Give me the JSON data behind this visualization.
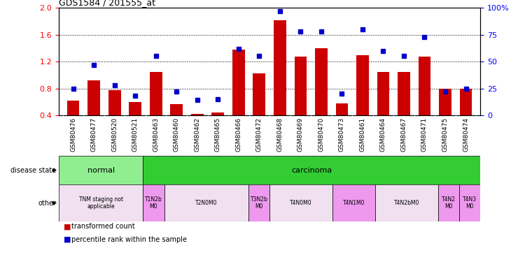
{
  "title": "GDS1584 / 201555_at",
  "samples": [
    "GSM80476",
    "GSM80477",
    "GSM80520",
    "GSM80521",
    "GSM80463",
    "GSM80460",
    "GSM80462",
    "GSM80465",
    "GSM80466",
    "GSM80472",
    "GSM80468",
    "GSM80469",
    "GSM80470",
    "GSM80473",
    "GSM80461",
    "GSM80464",
    "GSM80467",
    "GSM80471",
    "GSM80475",
    "GSM80474"
  ],
  "transformed_count": [
    0.62,
    0.92,
    0.77,
    0.6,
    1.05,
    0.57,
    0.42,
    0.44,
    1.38,
    1.02,
    1.82,
    1.27,
    1.4,
    0.58,
    1.3,
    1.05,
    1.05,
    1.27,
    0.8,
    0.8
  ],
  "percentile_rank": [
    25,
    47,
    28,
    18,
    55,
    22,
    14,
    15,
    62,
    55,
    97,
    78,
    78,
    20,
    80,
    60,
    55,
    73,
    22,
    25
  ],
  "ylim_left": [
    0.4,
    2.0
  ],
  "ylim_right": [
    0,
    100
  ],
  "yticks_left": [
    0.4,
    0.8,
    1.2,
    1.6,
    2.0
  ],
  "yticks_right": [
    0,
    25,
    50,
    75,
    100
  ],
  "ytick_right_labels": [
    "0",
    "25",
    "50",
    "75",
    "100%"
  ],
  "bar_color": "#cc0000",
  "dot_color": "#0000cc",
  "xticklabel_bg": "#c8c8c8",
  "disease_state_normal_color": "#90ee90",
  "disease_state_carcinoma_color": "#33cc33",
  "other_white_color": "#f0e0f0",
  "other_pink_color": "#ee99ee",
  "other_groups": [
    {
      "label": "TNM staging not\napplicable",
      "start": 0,
      "end": 4,
      "color": "#f0e0f0"
    },
    {
      "label": "T1N2b\nM0",
      "start": 4,
      "end": 5,
      "color": "#ee99ee"
    },
    {
      "label": "T2N0M0",
      "start": 5,
      "end": 9,
      "color": "#f0e0f0"
    },
    {
      "label": "T3N2b\nM0",
      "start": 9,
      "end": 10,
      "color": "#ee99ee"
    },
    {
      "label": "T4N0M0",
      "start": 10,
      "end": 13,
      "color": "#f0e0f0"
    },
    {
      "label": "T4N1M0",
      "start": 13,
      "end": 15,
      "color": "#ee99ee"
    },
    {
      "label": "T4N2bM0",
      "start": 15,
      "end": 18,
      "color": "#f0e0f0"
    },
    {
      "label": "T4N2\nM0",
      "start": 18,
      "end": 19,
      "color": "#ee99ee"
    },
    {
      "label": "T4N3\nM0",
      "start": 19,
      "end": 20,
      "color": "#ee99ee"
    }
  ],
  "grid_lines": [
    0.8,
    1.2,
    1.6
  ],
  "bar_width": 0.6
}
